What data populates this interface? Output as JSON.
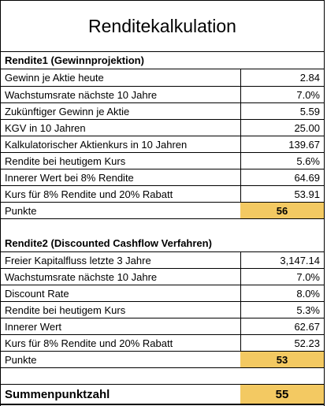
{
  "title": "Renditekalkulation",
  "section1": {
    "header": "Rendite1 (Gewinnprojektion)",
    "rows": [
      {
        "label": "Gewinn je Aktie heute",
        "value": "2.84"
      },
      {
        "label": "Wachstumsrate nächste 10 Jahre",
        "value": "7.0%"
      },
      {
        "label": "Zukünftiger Gewinn je Aktie",
        "value": "5.59"
      },
      {
        "label": "KGV in 10 Jahren",
        "value": "25.00"
      },
      {
        "label": "Kalkulatorischer Aktienkurs in 10 Jahren",
        "value": "139.67"
      },
      {
        "label": "Rendite bei heutigem Kurs",
        "value": "5.6%"
      },
      {
        "label": "Innerer Wert bei 8% Rendite",
        "value": "64.69"
      },
      {
        "label": "Kurs für 8% Rendite und 20% Rabatt",
        "value": "53.91"
      }
    ],
    "points_label": "Punkte",
    "points_value": "56"
  },
  "section2": {
    "header": "Rendite2 (Discounted Cashflow Verfahren)",
    "rows": [
      {
        "label": "Freier Kapitalfluss letzte 3 Jahre",
        "value": "3,147.14"
      },
      {
        "label": "Wachstumsrate nächste 10 Jahre",
        "value": "7.0%"
      },
      {
        "label": "Discount Rate",
        "value": "8.0%"
      },
      {
        "label": "Rendite bei heutigem Kurs",
        "value": "5.3%"
      },
      {
        "label": "Innerer Wert",
        "value": "62.67"
      },
      {
        "label": "Kurs für 8% Rendite und 20% Rabatt",
        "value": "52.23"
      }
    ],
    "points_label": "Punkte",
    "points_value": "53"
  },
  "total": {
    "label": "Summenpunktzahl",
    "value": "55"
  },
  "colors": {
    "highlight": "#f3c962",
    "grid": "#000000",
    "background": "#ffffff"
  }
}
